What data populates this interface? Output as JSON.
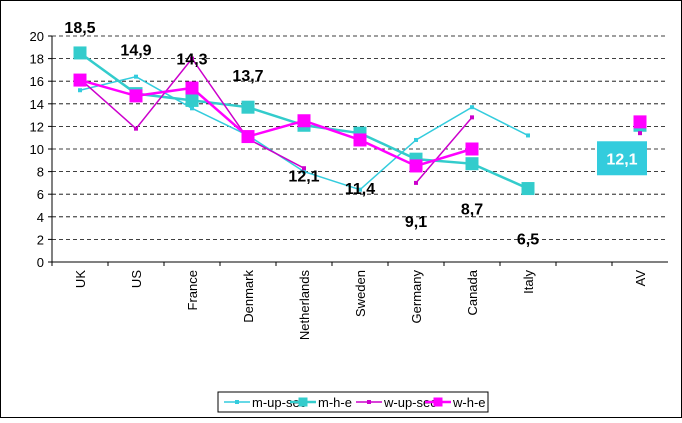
{
  "chart_data": {
    "type": "line",
    "categories": [
      "UK",
      "US",
      "France",
      "Denmark",
      "Netherlands",
      "Sweden",
      "Germany",
      "Canada",
      "Italy",
      null,
      "AV"
    ],
    "series": [
      {
        "name": "m-up-sec",
        "color": "#33ccdd",
        "marker": "small",
        "values": [
          15.2,
          16.4,
          13.6,
          11.2,
          8.0,
          6.4,
          10.8,
          13.7,
          11.2,
          null,
          11.9
        ]
      },
      {
        "name": "m-h-e",
        "color": "#33cccc",
        "marker": "square",
        "values": [
          18.5,
          14.9,
          14.3,
          13.7,
          12.1,
          11.4,
          9.1,
          8.7,
          6.5,
          null,
          12.1
        ],
        "value_labels": [
          "18,5",
          "14,9",
          "14,3",
          "13,7",
          "12,1",
          "11,4",
          "9,1",
          "8,7",
          "6,5",
          null,
          "12,1"
        ]
      },
      {
        "name": "w-up-sec",
        "color": "#cc00cc",
        "marker": "small",
        "values": [
          16.2,
          11.8,
          18.0,
          10.9,
          8.3,
          null,
          7.0,
          12.8,
          null,
          null,
          11.4
        ]
      },
      {
        "name": "w-h-e",
        "color": "#ff00ff",
        "marker": "square",
        "values": [
          16.1,
          14.7,
          15.4,
          11.1,
          12.5,
          10.8,
          8.5,
          10.0,
          null,
          null,
          12.4
        ]
      }
    ],
    "ylim": [
      0,
      20
    ],
    "yticks": [
      0,
      2,
      4,
      6,
      8,
      10,
      12,
      14,
      16,
      18,
      20
    ],
    "grid": true
  }
}
